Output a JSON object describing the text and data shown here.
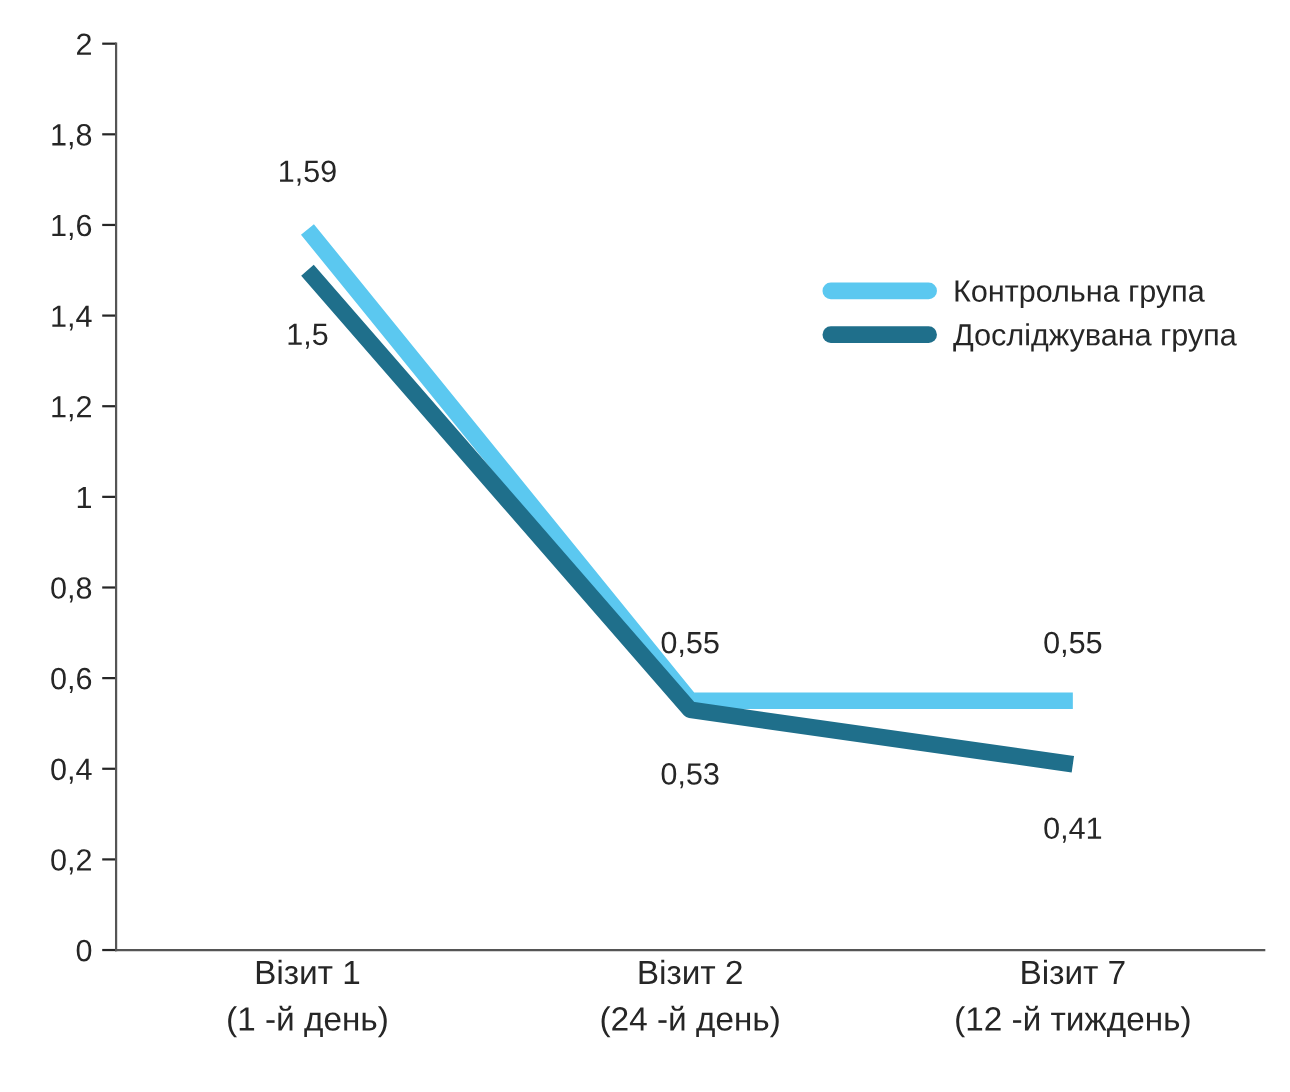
{
  "chart_data": {
    "type": "line",
    "categories": [
      "Візит 1\n(1 -й день)",
      "Візит 2\n(24 -й день)",
      "Візит 7\n(12 -й тиждень)"
    ],
    "series": [
      {
        "name": "Контрольна група",
        "color": "#5bc8f0",
        "values": [
          1.59,
          0.55,
          0.55
        ],
        "value_labels": [
          "1,59",
          "0,55",
          "0,55"
        ]
      },
      {
        "name": "Досліджувана група",
        "color": "#1f6f8b",
        "values": [
          1.5,
          0.53,
          0.41
        ],
        "value_labels": [
          "1,5",
          "0,53",
          "0,41"
        ]
      }
    ],
    "ylim": [
      0,
      2
    ],
    "yticks": [
      0,
      {
        "value": 0.2,
        "label": "0,2"
      },
      {
        "value": 0.4,
        "label": "0,4"
      },
      {
        "value": 0.6,
        "label": "0,6"
      },
      {
        "value": 0.8,
        "label": "0,8"
      },
      1,
      {
        "value": 1.2,
        "label": "1,2"
      },
      {
        "value": 1.4,
        "label": "1,4"
      },
      {
        "value": 1.6,
        "label": "1,6"
      },
      {
        "value": 1.8,
        "label": "1,8"
      },
      2
    ],
    "grid": false,
    "legend": "right",
    "marker": "none",
    "line_style": "solid"
  }
}
